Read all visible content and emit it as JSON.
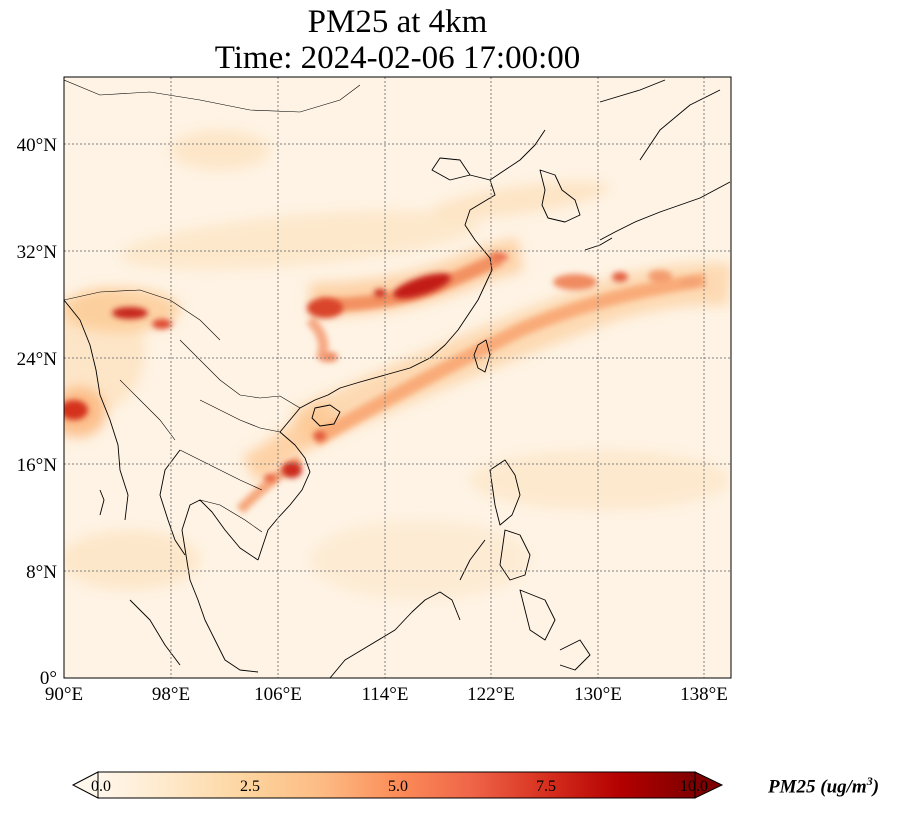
{
  "title": {
    "line1": "PM25 at 4km",
    "line2": "Time: 2024-02-06 17:00:00"
  },
  "map": {
    "lon_ticks": [
      "90°E",
      "98°E",
      "106°E",
      "114°E",
      "122°E",
      "130°E",
      "138°E"
    ],
    "lat_ticks": [
      "0°",
      "8°N",
      "16°N",
      "24°N",
      "32°N",
      "40°N"
    ],
    "lon_range": [
      90,
      140
    ],
    "lat_range": [
      0,
      45
    ],
    "gridline_color": "#808080",
    "coast_color": "#000000"
  },
  "colorbar": {
    "label": "PM25 (ug/m",
    "unit_exp": "3",
    "label_close": ")",
    "ticks": [
      "0.0",
      "2.5",
      "5.0",
      "7.5",
      "10.0"
    ],
    "range": [
      0,
      10
    ],
    "colormap": "OrRd",
    "colors": [
      "#fff7ec",
      "#fee8c8",
      "#fdd49e",
      "#fdbb84",
      "#fc8d59",
      "#ef6548",
      "#d7301f",
      "#b30000",
      "#7f0000"
    ]
  }
}
